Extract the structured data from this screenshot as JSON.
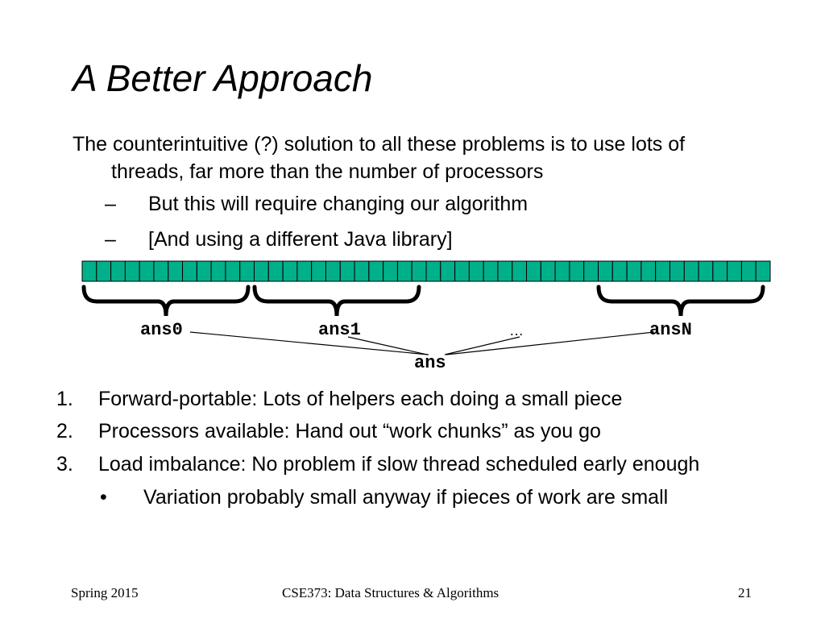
{
  "slide": {
    "title": "A Better Approach",
    "intro_line1": "The counterintuitive (?) solution to all these problems is to use lots of",
    "intro_line2": "threads, far more than the number of processors",
    "sub_bullets": [
      {
        "marker": "–",
        "text": "But this will require changing our algorithm"
      },
      {
        "marker": "–",
        "text": "[And using a different Java library]"
      }
    ],
    "diagram": {
      "cell_color": "#00b08a",
      "cell_count": 48,
      "labels": {
        "ans0": "ans0",
        "ans1": "ans1",
        "ellipsis": "…",
        "ansN": "ansN",
        "ans": "ans"
      }
    },
    "numbered_items": [
      {
        "num": "1.",
        "text": "Forward-portable: Lots of helpers each doing a small piece"
      },
      {
        "num": "2.",
        "text": "Processors available: Hand out “work chunks” as you go"
      },
      {
        "num": "3.",
        "text": "Load imbalance: No problem if slow thread scheduled early enough"
      }
    ],
    "bullet": {
      "marker": "•",
      "text": "Variation probably small anyway if pieces of work are small"
    }
  },
  "footer": {
    "left": "Spring 2015",
    "center": "CSE373: Data Structures & Algorithms",
    "page_number": "21"
  }
}
